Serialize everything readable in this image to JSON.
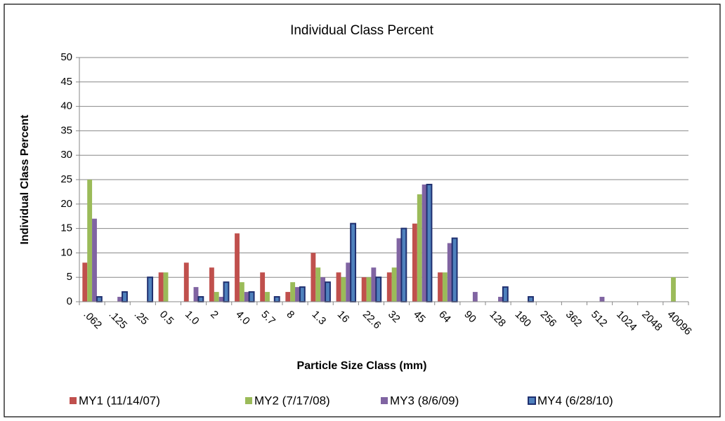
{
  "chart_data": {
    "type": "bar",
    "title": "Individual Class Percent",
    "x_label": "Particle Size Class (mm)",
    "y_label": "Individual Class Percent",
    "categories": [
      ".062",
      ".125",
      ".25",
      "0.5",
      "1.0",
      "2",
      "4.0",
      "5.7",
      "8",
      "1.3",
      "16",
      "22.6",
      "32",
      "45",
      "64",
      "90",
      "128",
      "180",
      "256",
      "362",
      "512",
      "1024",
      "2048",
      "40096"
    ],
    "series": [
      {
        "name": "MY1 (11/14/07)",
        "color": "#c0504d",
        "values": [
          8,
          0,
          0,
          6,
          8,
          7,
          14,
          6,
          2,
          10,
          6,
          5,
          6,
          16,
          6,
          0,
          0,
          0,
          0,
          0,
          0,
          0,
          0,
          0
        ]
      },
      {
        "name": "MY2 (7/17/08)",
        "color": "#9bbb59",
        "values": [
          25,
          0,
          0,
          6,
          0,
          2,
          4,
          2,
          4,
          7,
          5,
          5,
          7,
          22,
          6,
          0,
          0,
          0,
          0,
          0,
          0,
          0,
          0,
          5
        ]
      },
      {
        "name": "MY3 (8/6/09)",
        "color": "#8064a2",
        "values": [
          17,
          1,
          0,
          0,
          3,
          1,
          2,
          0,
          3,
          5,
          8,
          7,
          13,
          24,
          12,
          2,
          1,
          0,
          0,
          0,
          1,
          0,
          0,
          0
        ]
      },
      {
        "name": "MY4 (6/28/10)",
        "color": "#4f81bd",
        "stroke": "#1f2f6f",
        "values": [
          1,
          2,
          5,
          0,
          1,
          4,
          2,
          1,
          3,
          4,
          16,
          5,
          15,
          24,
          13,
          0,
          3,
          1,
          0,
          0,
          0,
          0,
          0,
          0
        ]
      }
    ],
    "ylim": [
      0,
      50
    ],
    "yticks": [
      0,
      5,
      10,
      15,
      20,
      25,
      30,
      35,
      40,
      45,
      50
    ],
    "grid": true,
    "legend": "bottom"
  }
}
